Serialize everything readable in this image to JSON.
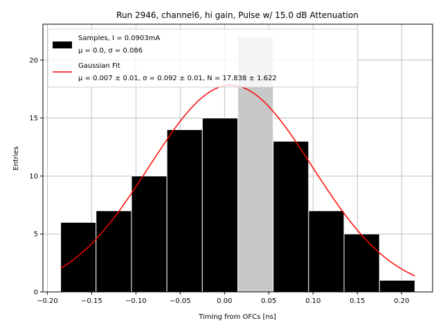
{
  "chart_data": {
    "type": "bar",
    "title": "Run 2946, channel6, hi gain, Pulse w/ 15.0 dB Attenuation",
    "xlabel": "Timing from OFCs [ns]",
    "ylabel": "Entries",
    "xlim": [
      -0.205,
      0.235
    ],
    "ylim": [
      0,
      23.1
    ],
    "grid": true,
    "legend_position": "top-left",
    "bin_edges": [
      -0.185,
      -0.145,
      -0.105,
      -0.065,
      -0.025,
      0.015,
      0.055,
      0.095,
      0.135,
      0.175,
      0.215
    ],
    "counts": [
      6,
      7,
      10,
      14,
      15,
      22,
      13,
      7,
      5,
      1
    ],
    "highlight_bin": 5,
    "x_ticks": [
      -0.2,
      -0.15,
      -0.1,
      -0.05,
      0.0,
      0.05,
      0.1,
      0.15,
      0.2
    ],
    "x_tick_labels": [
      "−0.20",
      "−0.15",
      "−0.10",
      "−0.05",
      "0.00",
      "0.05",
      "0.10",
      "0.15",
      "0.20"
    ],
    "y_ticks": [
      0,
      5,
      10,
      15,
      20
    ],
    "y_tick_labels": [
      "0",
      "5",
      "10",
      "15",
      "20"
    ],
    "fit": {
      "mu": 0.007,
      "sigma": 0.092,
      "N": 17.838
    },
    "legend": [
      {
        "line1": "Samples, I = 0.0903mA",
        "line2": "μ = 0.0, σ = 0.086"
      },
      {
        "line1": "Gaussian Fit",
        "line2": "μ = 0.007 ± 0.01, σ = 0.092 ± 0.01, N = 17.838 ± 1.622"
      }
    ],
    "colors": {
      "bar": "#000000",
      "highlight_bar": "#c8c8c8",
      "fit_line": "#ff0000"
    }
  }
}
